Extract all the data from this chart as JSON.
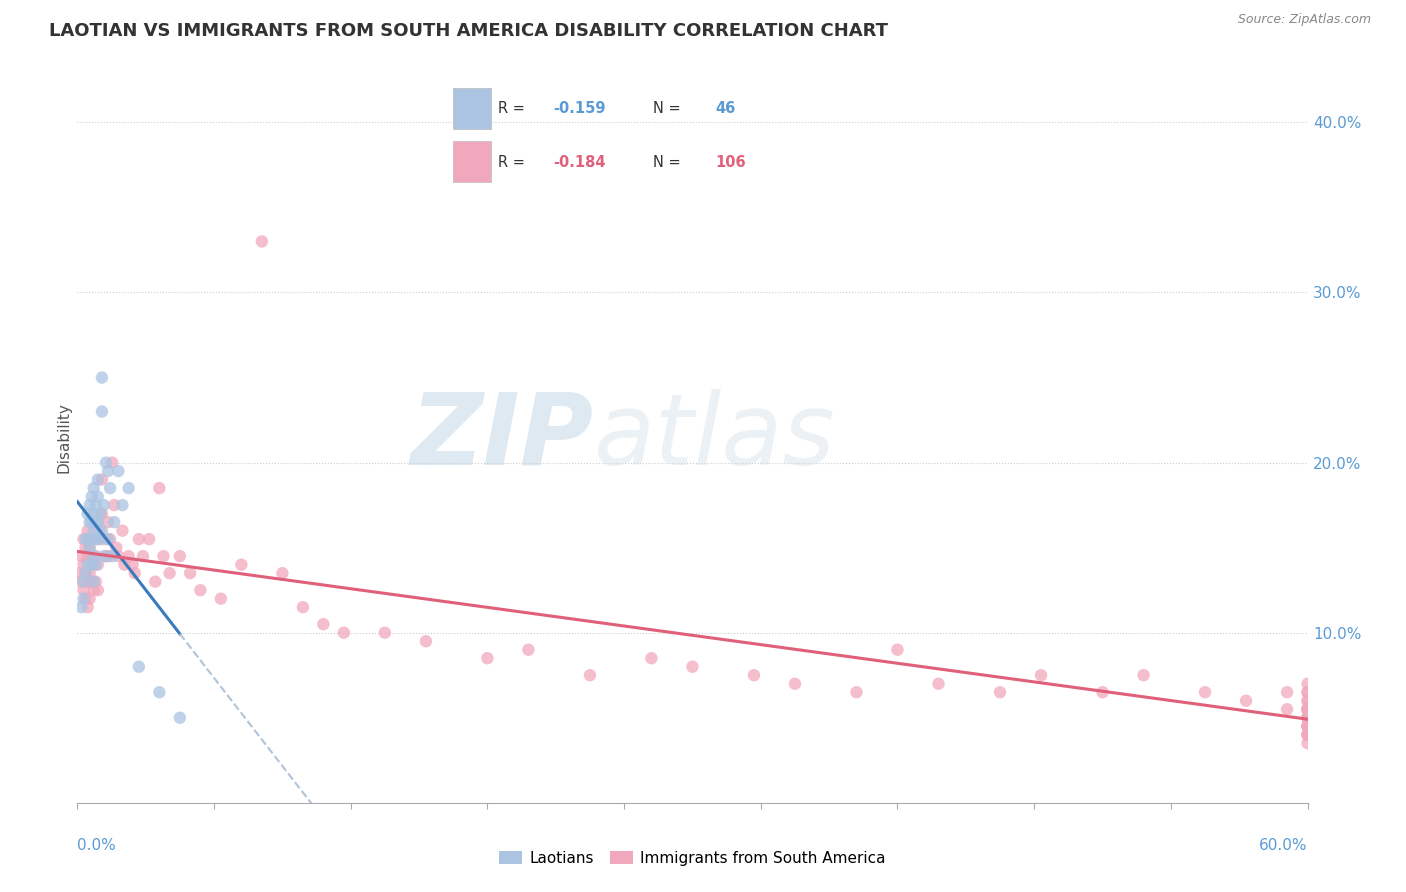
{
  "title": "LAOTIAN VS IMMIGRANTS FROM SOUTH AMERICA DISABILITY CORRELATION CHART",
  "source": "Source: ZipAtlas.com",
  "ylabel": "Disability",
  "y_tick_vals": [
    0.1,
    0.2,
    0.3,
    0.4
  ],
  "y_tick_labels": [
    "10.0%",
    "20.0%",
    "30.0%",
    "40.0%"
  ],
  "legend_r1": "-0.159",
  "legend_n1": "46",
  "legend_r2": "-0.184",
  "legend_n2": "106",
  "laotian_color": "#aac4e2",
  "south_america_color": "#f2a8bc",
  "laotian_line_color": "#3a7abf",
  "south_america_line_color": "#e0607a",
  "dash_color": "#b0c4d8",
  "watermark_zip": "ZIP",
  "watermark_atlas": "atlas",
  "xlim": [
    0.0,
    0.6
  ],
  "ylim": [
    0.0,
    0.43
  ],
  "laotian_scatter_x": [
    0.002,
    0.003,
    0.003,
    0.004,
    0.004,
    0.005,
    0.005,
    0.005,
    0.006,
    0.006,
    0.006,
    0.007,
    0.007,
    0.007,
    0.007,
    0.008,
    0.008,
    0.008,
    0.008,
    0.008,
    0.009,
    0.009,
    0.009,
    0.009,
    0.01,
    0.01,
    0.01,
    0.011,
    0.011,
    0.012,
    0.012,
    0.012,
    0.013,
    0.013,
    0.014,
    0.015,
    0.015,
    0.016,
    0.017,
    0.018,
    0.02,
    0.022,
    0.025,
    0.03,
    0.04,
    0.05
  ],
  "laotian_scatter_y": [
    0.115,
    0.13,
    0.12,
    0.155,
    0.135,
    0.17,
    0.155,
    0.14,
    0.175,
    0.165,
    0.15,
    0.18,
    0.165,
    0.155,
    0.14,
    0.185,
    0.17,
    0.16,
    0.145,
    0.13,
    0.175,
    0.165,
    0.155,
    0.14,
    0.19,
    0.18,
    0.165,
    0.17,
    0.155,
    0.25,
    0.23,
    0.16,
    0.175,
    0.145,
    0.2,
    0.195,
    0.155,
    0.185,
    0.145,
    0.165,
    0.195,
    0.175,
    0.185,
    0.08,
    0.065,
    0.05
  ],
  "south_america_scatter_x": [
    0.001,
    0.002,
    0.002,
    0.003,
    0.003,
    0.003,
    0.004,
    0.004,
    0.004,
    0.005,
    0.005,
    0.005,
    0.005,
    0.006,
    0.006,
    0.006,
    0.007,
    0.007,
    0.008,
    0.008,
    0.008,
    0.009,
    0.009,
    0.01,
    0.01,
    0.01,
    0.011,
    0.012,
    0.012,
    0.013,
    0.014,
    0.015,
    0.015,
    0.016,
    0.017,
    0.018,
    0.019,
    0.02,
    0.022,
    0.023,
    0.025,
    0.027,
    0.028,
    0.03,
    0.032,
    0.035,
    0.038,
    0.04,
    0.042,
    0.045,
    0.05,
    0.055,
    0.06,
    0.07,
    0.08,
    0.09,
    0.1,
    0.11,
    0.12,
    0.13,
    0.15,
    0.17,
    0.2,
    0.22,
    0.25,
    0.28,
    0.3,
    0.33,
    0.35,
    0.38,
    0.4,
    0.42,
    0.45,
    0.47,
    0.5,
    0.52,
    0.55,
    0.57,
    0.59,
    0.59,
    0.6,
    0.6,
    0.6,
    0.6,
    0.6,
    0.6,
    0.6,
    0.6,
    0.6,
    0.6,
    0.6,
    0.6,
    0.6,
    0.6,
    0.6,
    0.6,
    0.6,
    0.6,
    0.6,
    0.6,
    0.6,
    0.6,
    0.6,
    0.6,
    0.6,
    0.6
  ],
  "south_america_scatter_y": [
    0.135,
    0.145,
    0.13,
    0.155,
    0.14,
    0.125,
    0.15,
    0.135,
    0.12,
    0.16,
    0.145,
    0.13,
    0.115,
    0.15,
    0.135,
    0.12,
    0.145,
    0.13,
    0.155,
    0.14,
    0.125,
    0.145,
    0.13,
    0.155,
    0.14,
    0.125,
    0.16,
    0.19,
    0.17,
    0.155,
    0.145,
    0.165,
    0.145,
    0.155,
    0.2,
    0.175,
    0.15,
    0.145,
    0.16,
    0.14,
    0.145,
    0.14,
    0.135,
    0.155,
    0.145,
    0.155,
    0.13,
    0.185,
    0.145,
    0.135,
    0.145,
    0.135,
    0.125,
    0.12,
    0.14,
    0.33,
    0.135,
    0.115,
    0.105,
    0.1,
    0.1,
    0.095,
    0.085,
    0.09,
    0.075,
    0.085,
    0.08,
    0.075,
    0.07,
    0.065,
    0.09,
    0.07,
    0.065,
    0.075,
    0.065,
    0.075,
    0.065,
    0.06,
    0.055,
    0.065,
    0.055,
    0.065,
    0.055,
    0.05,
    0.07,
    0.06,
    0.055,
    0.065,
    0.05,
    0.045,
    0.06,
    0.05,
    0.045,
    0.05,
    0.045,
    0.055,
    0.045,
    0.04,
    0.05,
    0.04,
    0.05,
    0.04,
    0.055,
    0.045,
    0.035,
    0.04
  ]
}
